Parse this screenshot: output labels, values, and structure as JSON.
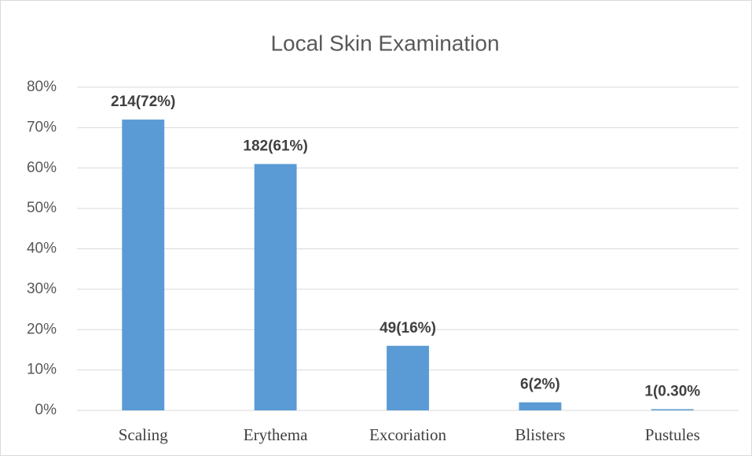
{
  "chart_data": {
    "type": "bar",
    "title": "Local Skin Examination",
    "categories": [
      "Scaling",
      "Erythema",
      "Excoriation",
      "Blisters",
      "Pustules"
    ],
    "values": [
      72,
      61,
      16,
      2,
      0.3
    ],
    "value_labels": [
      "214(72%)",
      "182(61%)",
      "49(16%)",
      "6(2%)",
      "1(0.30%"
    ],
    "color": "#5b9bd5",
    "ylim": [
      0,
      80
    ],
    "yticks": [
      {
        "value": 0,
        "label": "0%"
      },
      {
        "value": 10,
        "label": "10%"
      },
      {
        "value": 20,
        "label": "20%"
      },
      {
        "value": 30,
        "label": "30%"
      },
      {
        "value": 40,
        "label": "40%"
      },
      {
        "value": 50,
        "label": "50%"
      },
      {
        "value": 60,
        "label": "60%"
      },
      {
        "value": 70,
        "label": "70%"
      },
      {
        "value": 80,
        "label": "80%"
      }
    ],
    "grid": true
  }
}
